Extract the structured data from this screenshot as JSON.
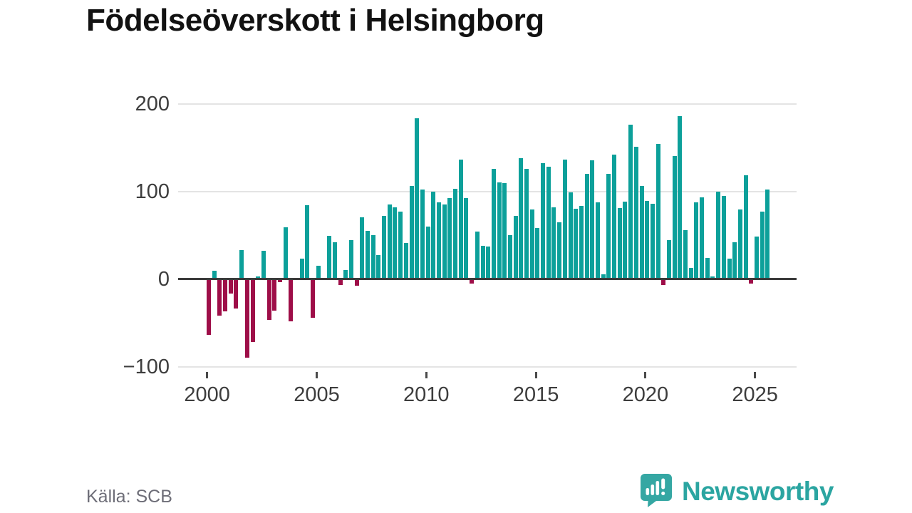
{
  "title": "Födelseöverskott i Helsingborg",
  "source": "Källa: SCB",
  "branding": {
    "logo_text": "Newsworthy",
    "logo_icon": "newsworthy-speech-bubble-bar-chart-icon"
  },
  "colors": {
    "positive_bar": "#0ca09a",
    "negative_bar": "#9e0e48",
    "logo_teal": "#2ba5a1",
    "grid": "#e4e4e4",
    "zero_line": "#3b3b3b",
    "axis_text": "#3d3d3d",
    "title_text": "#121212",
    "source_text": "#6d6d77"
  },
  "chart_data": {
    "type": "bar",
    "title": "Födelseöverskott i Helsingborg",
    "frequency": "quarterly",
    "start_period": "2000-Q1",
    "end_period": "2025-Q3",
    "ylim": [
      -100,
      200
    ],
    "grid": true,
    "legend": "none",
    "positive_color": "#0ca09a",
    "negative_color": "#9e0e48",
    "y_ticks": [
      {
        "label": "200",
        "value": 200
      },
      {
        "label": "100",
        "value": 100
      },
      {
        "label": "0",
        "value": 0
      },
      {
        "label": "−100",
        "value": -100
      }
    ],
    "x_ticks": [
      {
        "label": "2000",
        "year": 2000
      },
      {
        "label": "2005",
        "year": 2005
      },
      {
        "label": "2010",
        "year": 2010
      },
      {
        "label": "2015",
        "year": 2015
      },
      {
        "label": "2020",
        "year": 2020
      },
      {
        "label": "2025",
        "year": 2025
      }
    ],
    "values": [
      -64,
      9,
      -42,
      -37,
      -17,
      -34,
      33,
      -90,
      -72,
      3,
      32,
      -47,
      -36,
      -4,
      59,
      -48,
      1,
      23,
      84,
      -44,
      15,
      1,
      49,
      42,
      -7,
      10,
      44,
      -8,
      70,
      55,
      50,
      27,
      72,
      85,
      82,
      77,
      41,
      106,
      183,
      102,
      60,
      100,
      87,
      85,
      92,
      103,
      136,
      92,
      -5,
      54,
      38,
      37,
      126,
      110,
      109,
      50,
      72,
      138,
      126,
      79,
      58,
      132,
      128,
      82,
      65,
      136,
      99,
      80,
      83,
      120,
      135,
      87,
      5,
      120,
      142,
      81,
      88,
      176,
      151,
      106,
      89,
      86,
      154,
      -7,
      44,
      140,
      186,
      56,
      13,
      87,
      93,
      24,
      3,
      100,
      95,
      23,
      42,
      79,
      118,
      -5,
      48,
      77,
      102
    ]
  }
}
